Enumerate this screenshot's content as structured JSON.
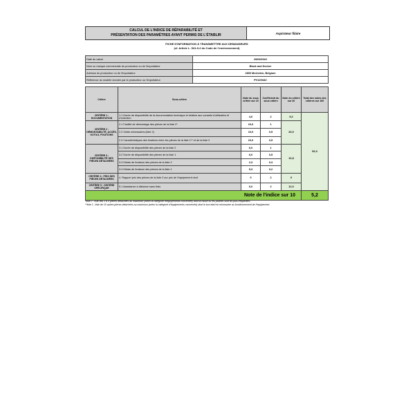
{
  "title": {
    "line1": "CALCUL DE L'INDICE DE RÉPARABILITÉ ET",
    "line2": "PRÉSENTATION DES PARAMÈTRES AYANT PERMIS DE L'ÉTABLIR",
    "product": "Aspirateur filaire"
  },
  "subtitle": {
    "line1": "FICHE D'INFORMATION À TRANSMETTRE AUX DEMANDEURS",
    "line2": "(cf. Article L. 541-9-2 du Code de l'environnement)"
  },
  "info": [
    {
      "label": "Date du calcul",
      "value": "29/09/2022"
    },
    {
      "label": "Nom ou marque commerciale du producteur ou de l'importateur",
      "value": "Black and Decker"
    },
    {
      "label": "Adresse du producteur ou de l'importateur",
      "value": "2800 Mechelen, Belgium"
    },
    {
      "label": "Référence du modèle donnée par le producteur ou l'importateur",
      "value": "PV1200AV"
    }
  ],
  "headers": {
    "critere": "Critère",
    "sous": "Sous-critère",
    "note10": "Note du sous critère sur 10",
    "coef": "Coefficient du sous critère",
    "note20": "Note du critère sur 20",
    "total": "Total des notes des critères sur 100"
  },
  "criteria": [
    {
      "name": "CRITÈRE 1 : DOCUMENTATION",
      "score20": "9,2",
      "rows": [
        {
          "label": "1.1 Durée de disponibilité de la documentation technique et relative aux conseils d'utilisation et d'entretien",
          "note": "4,6",
          "coef": "2"
        }
      ]
    },
    {
      "name": "CRITÈRE 2 : DÉMONTABILITÉ, ACCÈS, OUTILS, FIXATIONS",
      "score20": "20,0",
      "rows": [
        {
          "label": "2.1 Facilité de démontage des pièces de la liste 2*",
          "note": "10,0",
          "coef": "1"
        },
        {
          "label": "2.2 Outils nécessaires (liste 2)",
          "note": "10,0",
          "coef": "0,5"
        },
        {
          "label": "2.3 Caractéristiques des fixations entre les pièces de la liste 1** et de la liste 2",
          "note": "10,0",
          "coef": "0,5"
        }
      ]
    },
    {
      "name": "CRITÈRE 3 : DISPONIBILITÉ DES PIÈCES DÉTACHÉES",
      "score20": "10,8",
      "rows": [
        {
          "label": "3.1 Durée de disponibilité des pièces de la liste 2",
          "note": "6,0",
          "coef": "1"
        },
        {
          "label": "3.2 Durée de disponibilité des pièces de la liste 1",
          "note": "6,0",
          "coef": "0,5"
        },
        {
          "label": "3.3 Délais de livraison des pièces de la liste 2",
          "note": "2,3",
          "coef": "0,3"
        },
        {
          "label": "3.4 Délais de livraison des pièces de la liste 1",
          "note": "5,3",
          "coef": "0,2"
        }
      ]
    },
    {
      "name": "CRITÈRE 4 : PRIX DES PIÈCES DÉTACHÉES",
      "score20": "0",
      "rows": [
        {
          "label": "4. Rapport prix des pièces de la liste 2 sur prix de l'équipement neuf",
          "note": "0",
          "coef": "2"
        }
      ]
    },
    {
      "name": "CRITÈRE 5 : CRITÈRE SPÉCIFIQUE",
      "score20": "12,0",
      "rows": [
        {
          "label": "5.1 Assistance à distance sans frais",
          "note": "6,0",
          "coef": "2"
        }
      ]
    }
  ],
  "total100": "52,0",
  "final": {
    "label": "Note de l'indice sur 10",
    "value": "5,2"
  },
  "notes": [
    "*liste 2 : liste des 3 à 5 pièces détachées au maximum (selon la catégorie d'équipements concernée) dont la casse ou les pannes sont les plus fréquentes ;",
    "**liste 1 : liste de 10 autres pièces détachées au maximum (selon la catégorie d'équipements concernée) dont le bon état est nécessaire au fonctionnement de l'équipement."
  ],
  "colors": {
    "header_gray": "#d4d4d4",
    "score_green": "#e2efda",
    "final_green": "#92d050"
  }
}
